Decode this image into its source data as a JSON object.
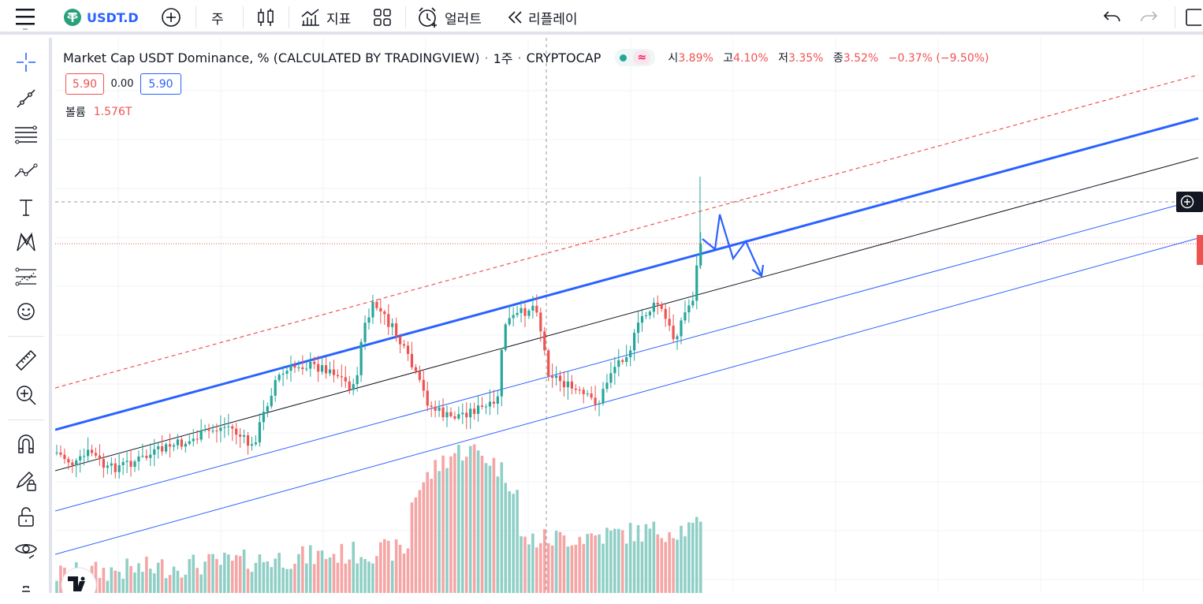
{
  "toolbar": {
    "symbol": "USDT.D",
    "interval": "주",
    "indicators_label": "지표",
    "alert_label": "얼러트",
    "replay_label": "리플레이"
  },
  "legend": {
    "title": "Market Cap USDT Dominance, % (CALCULATED BY TRADINGVIEW)",
    "dot1": "·",
    "interval": "1주",
    "dot2": "·",
    "exchange": "CRYPTOCAP",
    "open_label": "시",
    "open_value": "3.89%",
    "high_label": "고",
    "high_value": "4.10%",
    "low_label": "저",
    "low_value": "3.35%",
    "close_label": "종",
    "close_value": "3.52%",
    "change": "−0.37% (−9.50%)",
    "box_sell": "5.90",
    "spread": "0.00",
    "box_buy": "5.90",
    "volume_label": "볼륨",
    "volume_value": "1.576T"
  },
  "colors": {
    "up": "#26a69a",
    "down": "#ef5350",
    "channel_main": "#2962ff",
    "channel_thin": "#2962ff",
    "midline": "#131722",
    "upper_dashed": "#ef5350",
    "vol_up": "#8fcfc6",
    "vol_down": "#f6a5a5"
  },
  "icons": {
    "menu": "hamburger-icon",
    "symbol_badge": "tether-icon",
    "compare": "plus-circle-icon",
    "chart_type": "candles-icon",
    "indicators": "indicators-icon",
    "layouts": "grid-icon",
    "alert": "alarm-clock-icon",
    "replay": "rewind-icon",
    "undo": "undo-icon",
    "redo": "redo-icon",
    "logo": "tradingview-logo"
  },
  "sidebar": {
    "tools": [
      "crosshair",
      "trend-line",
      "fib",
      "patterns",
      "text",
      "xabcd",
      "prediction",
      "emoji",
      "ruler",
      "zoom",
      "magnet",
      "lock-draw",
      "lock",
      "eye",
      "trash"
    ]
  }
}
